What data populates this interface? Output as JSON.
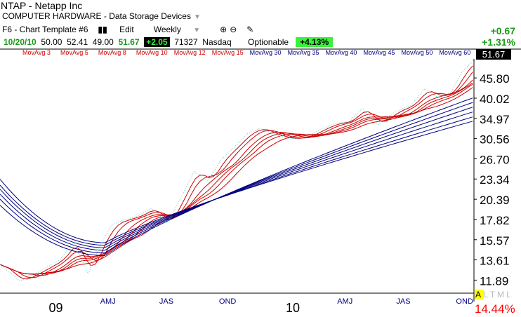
{
  "header": {
    "symbol_line": "NTAP - Netapp Inc",
    "sector_line": "COMPUTER HARDWARE - Data Storage Devices",
    "template": "F6 - Chart Template #6",
    "edit_label": "Edit",
    "period": "Weekly",
    "date": "10/20/10",
    "open": "50.00",
    "high": "52.41",
    "low": "49.00",
    "close": "51.67",
    "change": "+2.05",
    "volume": "71327",
    "exchange": "Nasdaq",
    "optionable": "Optionable",
    "pct_change": "+4.13%",
    "right_change": "+0.67",
    "right_pct": "+1.31%"
  },
  "indicators": {
    "labels": [
      "MovAvg 3",
      "MovAvg 5",
      "MovAvg 8",
      "MovAvg 10",
      "MovAvg 12",
      "MovAvg 15",
      "MovAvg 30",
      "MovAvg 35",
      "MovAvg 40",
      "MovAvg 45",
      "MovAvg 50",
      "MovAvg 60"
    ],
    "short_color": "#cc0000",
    "long_color": "#000080"
  },
  "last_price_box": "51.67",
  "footer": {
    "altml": "ALTML",
    "altml_highlight": "A",
    "altml_rest": "LTML",
    "rs_pct": "14.44%"
  },
  "chart_data": {
    "type": "line",
    "y_scale": "log",
    "y_ticks": [
      45.8,
      40.02,
      34.97,
      30.56,
      26.7,
      23.34,
      20.39,
      17.82,
      15.57,
      13.61,
      11.89
    ],
    "x_ticks": [
      {
        "label": "09",
        "date": "2009-01-01",
        "major": true
      },
      {
        "label": "AMJ",
        "date": "2009-04-01"
      },
      {
        "label": "JAS",
        "date": "2009-07-01"
      },
      {
        "label": "OND",
        "date": "2009-10-01"
      },
      {
        "label": "10",
        "date": "2010-01-01",
        "major": true
      },
      {
        "label": "AMJ",
        "date": "2010-04-01"
      },
      {
        "label": "JAS",
        "date": "2010-07-01"
      },
      {
        "label": "OND",
        "date": "2010-10-01"
      }
    ],
    "x_range": [
      "2008-10-20",
      "2010-10-20"
    ],
    "ylim": [
      10.9,
      52.0
    ],
    "price_series": {
      "name": "",
      "color": "#66cccc",
      "points": [
        [
          "2008-10-20",
          13.2
        ],
        [
          "2008-11-20",
          11.8
        ],
        [
          "2008-12-20",
          12.6
        ],
        [
          "2009-01-20",
          13.6
        ],
        [
          "2009-02-10",
          15.3
        ],
        [
          "2009-03-05",
          12.4
        ],
        [
          "2009-03-20",
          14.6
        ],
        [
          "2009-04-10",
          17.2
        ],
        [
          "2009-05-01",
          17.8
        ],
        [
          "2009-05-20",
          18.2
        ],
        [
          "2009-06-10",
          19.2
        ],
        [
          "2009-07-05",
          17.4
        ],
        [
          "2009-07-25",
          20.5
        ],
        [
          "2009-08-15",
          24.6
        ],
        [
          "2009-09-05",
          23.0
        ],
        [
          "2009-09-25",
          26.5
        ],
        [
          "2009-10-20",
          29.4
        ],
        [
          "2009-11-05",
          31.6
        ],
        [
          "2009-11-25",
          32.8
        ],
        [
          "2009-12-15",
          31.5
        ],
        [
          "2010-01-10",
          30.5
        ],
        [
          "2010-02-05",
          30.9
        ],
        [
          "2010-02-25",
          32.4
        ],
        [
          "2010-03-20",
          33.8
        ],
        [
          "2010-04-10",
          34.2
        ],
        [
          "2010-05-01",
          37.4
        ],
        [
          "2010-05-25",
          33.6
        ],
        [
          "2010-06-20",
          36.5
        ],
        [
          "2010-07-15",
          38.2
        ],
        [
          "2010-08-05",
          42.6
        ],
        [
          "2010-08-25",
          40.3
        ],
        [
          "2010-09-15",
          41.6
        ],
        [
          "2010-10-01",
          47.5
        ],
        [
          "2010-10-20",
          51.67
        ]
      ]
    },
    "short_ma_periods": [
      3,
      5,
      8,
      10,
      12,
      15
    ],
    "long_ma_periods": [
      30,
      35,
      40,
      45,
      50,
      60
    ],
    "long_ma_start": [
      {
        "period": 30,
        "value": 19.6
      },
      {
        "period": 35,
        "value": 20.4
      },
      {
        "period": 40,
        "value": 21.1
      },
      {
        "period": 45,
        "value": 21.8
      },
      {
        "period": 50,
        "value": 22.4
      },
      {
        "period": 60,
        "value": 23.3
      }
    ],
    "long_ma_end": [
      {
        "period": 30,
        "value": 40.2
      },
      {
        "period": 35,
        "value": 39.0
      },
      {
        "period": 40,
        "value": 37.8
      },
      {
        "period": 45,
        "value": 36.6
      },
      {
        "period": 50,
        "value": 35.4
      },
      {
        "period": 60,
        "value": 34.4
      }
    ]
  }
}
